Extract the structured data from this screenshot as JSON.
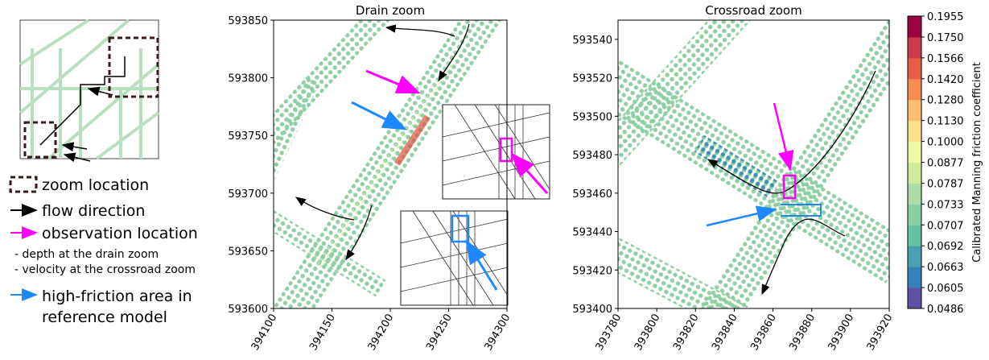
{
  "legend": {
    "items": [
      "zoom location",
      "flow direction",
      "observation location",
      "- depth at the drain zoom",
      "- velocity at the crossroad zoom",
      "high-friction area in",
      "reference model"
    ]
  },
  "chart_data": [
    {
      "type": "scatter",
      "title": "Drain zoom",
      "xlim": [
        394100,
        394300
      ],
      "xticks": [
        394100,
        394150,
        394200,
        394250,
        394300
      ],
      "ylim": [
        593600,
        593850
      ],
      "yticks": [
        593600,
        593650,
        593700,
        593750,
        593800,
        593850
      ]
    },
    {
      "type": "scatter",
      "title": "Crossroad zoom",
      "xlim": [
        393780,
        393920
      ],
      "xticks": [
        393780,
        393800,
        393820,
        393840,
        393860,
        393880,
        393900,
        393920
      ],
      "ylim": [
        593400,
        593550
      ],
      "yticks": [
        593400,
        593420,
        593440,
        593460,
        593480,
        593500,
        593520,
        593540
      ]
    }
  ],
  "colorbar": {
    "label": "Calibrated Manning friction coefficient",
    "ticks": [
      0.0486,
      0.0605,
      0.0663,
      0.0692,
      0.0707,
      0.0733,
      0.0787,
      0.0877,
      {
        "value": 0.1,
        "label": "0.1000"
      },
      {
        "value": 0.113,
        "label": "0.1130"
      },
      {
        "value": 0.128,
        "label": "0.1280"
      },
      {
        "value": 0.142,
        "label": "0.1420"
      },
      0.1566,
      {
        "value": 0.175,
        "label": "0.1750"
      },
      0.1955
    ],
    "colors": [
      "#5e4fa2",
      "#3880b9",
      "#4aa0b3",
      "#66c2a5",
      "#89d0a4",
      "#abdda4",
      "#d0ec9c",
      "#f0f9a8",
      "#fee08b",
      "#fdbe6f",
      "#f88d52",
      "#e95d46",
      "#cf3a4c",
      "#9e0142"
    ]
  }
}
